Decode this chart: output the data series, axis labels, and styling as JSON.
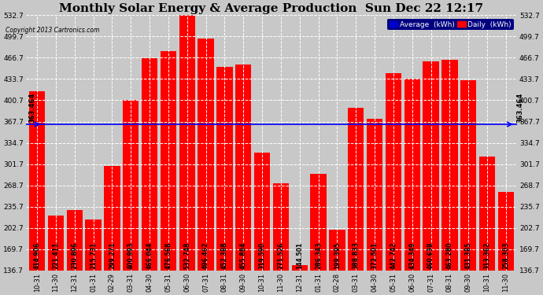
{
  "title": "Monthly Solar Energy & Average Production  Sun Dec 22 12:17",
  "copyright": "Copyright 2013 Cartronics.com",
  "categories": [
    "10-31",
    "11-30",
    "12-31",
    "01-31",
    "02-29",
    "03-31",
    "04-30",
    "05-31",
    "06-30",
    "07-31",
    "08-31",
    "09-30",
    "10-31",
    "11-30",
    "12-31",
    "01-31",
    "02-28",
    "03-31",
    "04-30",
    "05-31",
    "06-30",
    "07-31",
    "08-31",
    "09-30",
    "10-31",
    "11-30"
  ],
  "values": [
    414.906,
    221.411,
    230.896,
    215.731,
    299.271,
    400.993,
    466.044,
    476.568,
    532.748,
    496.462,
    452.388,
    455.884,
    319.59,
    271.526,
    144.501,
    286.343,
    199.395,
    388.833,
    372.501,
    442.742,
    434.349,
    460.638,
    463.28,
    431.385,
    313.362,
    258.303
  ],
  "average": 363.464,
  "bar_color": "#ff0000",
  "avg_line_color": "#0000ff",
  "background_color": "#c8c8c8",
  "plot_bg_color": "#c8c8c8",
  "grid_color": "#ffffff",
  "ymin": 136.7,
  "ymax": 532.7,
  "yticks": [
    136.7,
    169.7,
    202.7,
    235.7,
    268.7,
    301.7,
    334.7,
    367.7,
    400.7,
    433.7,
    466.7,
    499.7,
    532.7
  ],
  "title_fontsize": 11,
  "bar_label_fontsize": 5.5,
  "avg_label": "363.464",
  "legend_avg_text": "Average  (kWh)",
  "legend_daily_text": "Daily  (kWh)",
  "legend_avg_bg": "#0000cc",
  "legend_daily_bg": "#ff0000"
}
